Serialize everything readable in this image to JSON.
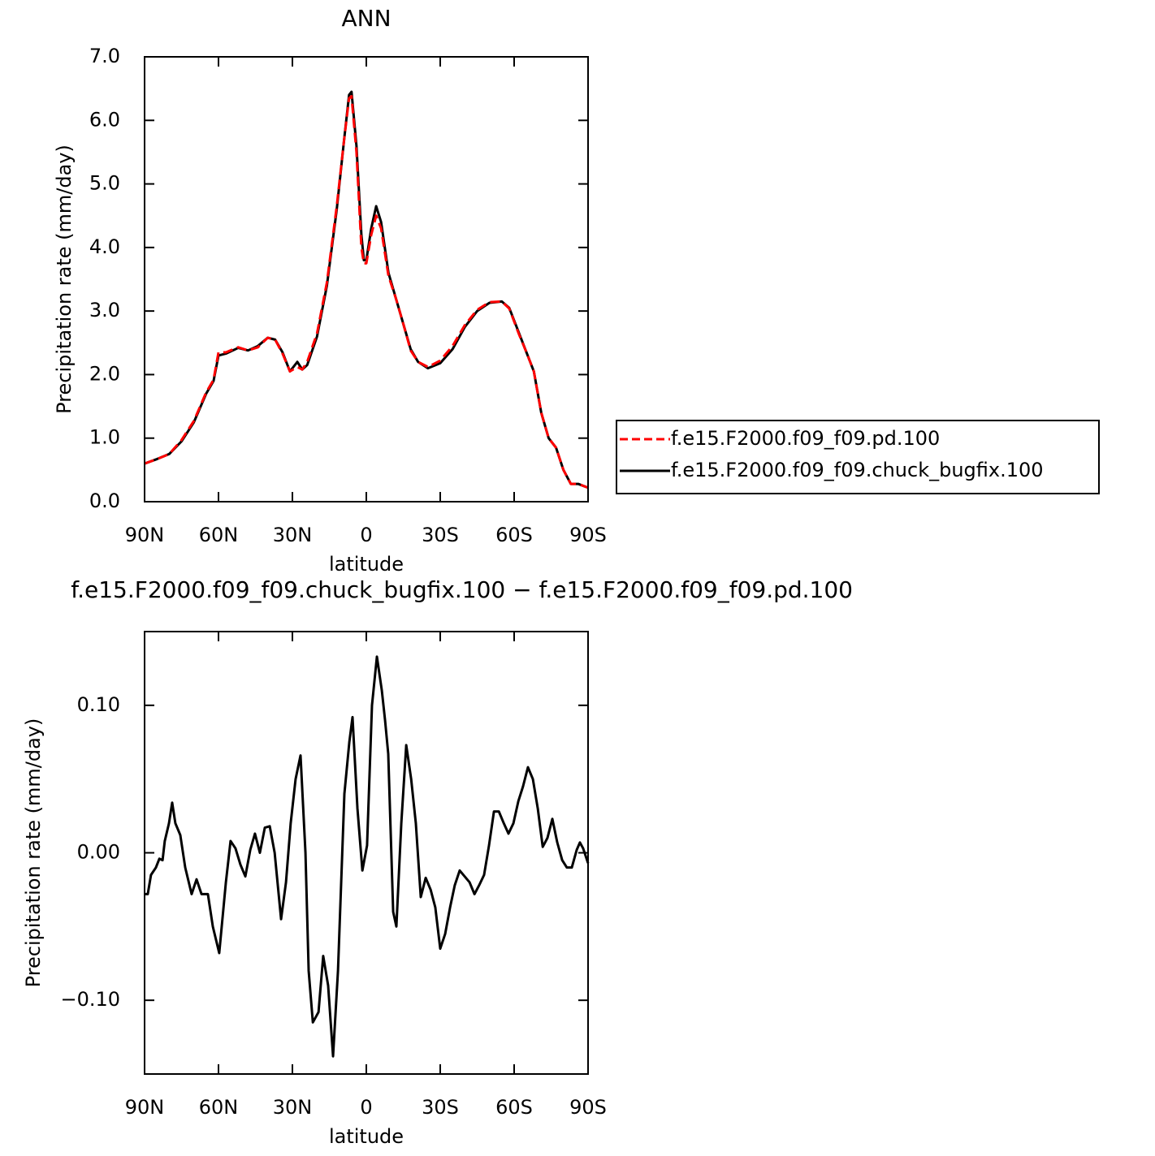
{
  "chart_data": [
    {
      "type": "line",
      "title": "ANN",
      "xlabel": "latitude",
      "ylabel": "Precipitation rate (mm/day)",
      "x": [
        90,
        85,
        80,
        75,
        70,
        65,
        62,
        60,
        57,
        52,
        48,
        44,
        40,
        37,
        34,
        31,
        28,
        26,
        24,
        20,
        16,
        12,
        9,
        7,
        6,
        4,
        2,
        1,
        0,
        -2,
        -4,
        -6,
        -9,
        -12,
        -15,
        -18,
        -21,
        -25,
        -30,
        -35,
        -40,
        -45,
        -50,
        -55,
        -58,
        -62,
        -65,
        -68,
        -71,
        -74,
        -77,
        -80,
        -83,
        -86,
        -88,
        -90
      ],
      "series": [
        {
          "name": "f.e15.F2000.f09_f09.pd.100",
          "color": "#ff0000",
          "linestyle": "dashed",
          "values": [
            0.6,
            0.67,
            0.75,
            0.97,
            1.27,
            1.72,
            1.92,
            2.35,
            2.35,
            2.43,
            2.38,
            2.43,
            2.58,
            2.55,
            2.33,
            2.05,
            2.12,
            2.08,
            2.2,
            2.65,
            3.45,
            4.65,
            5.7,
            6.35,
            6.38,
            5.5,
            4.0,
            3.75,
            3.75,
            4.2,
            4.5,
            4.3,
            3.55,
            3.2,
            2.8,
            2.38,
            2.2,
            2.12,
            2.22,
            2.45,
            2.78,
            3.02,
            3.14,
            3.15,
            3.04,
            2.63,
            2.35,
            2.05,
            1.4,
            1.0,
            0.85,
            0.5,
            0.28,
            0.28,
            0.25,
            0.22
          ]
        },
        {
          "name": "f.e15.F2000.f09_f09.chuck_bugfix.100",
          "color": "#000000",
          "linestyle": "solid",
          "values": [
            0.6,
            0.67,
            0.75,
            0.95,
            1.25,
            1.7,
            1.9,
            2.3,
            2.33,
            2.42,
            2.38,
            2.45,
            2.58,
            2.55,
            2.35,
            2.05,
            2.2,
            2.08,
            2.15,
            2.6,
            3.4,
            4.6,
            5.7,
            6.4,
            6.45,
            5.6,
            4.2,
            3.8,
            3.8,
            4.3,
            4.65,
            4.4,
            3.6,
            3.2,
            2.8,
            2.4,
            2.2,
            2.1,
            2.18,
            2.4,
            2.75,
            3.0,
            3.13,
            3.15,
            3.05,
            2.65,
            2.35,
            2.05,
            1.4,
            1.0,
            0.85,
            0.5,
            0.28,
            0.28,
            0.25,
            0.22
          ]
        }
      ],
      "xlim": [
        90,
        -90
      ],
      "xticks": [
        {
          "value": 90,
          "label": "90N"
        },
        {
          "value": 60,
          "label": "60N"
        },
        {
          "value": 30,
          "label": "30N"
        },
        0,
        {
          "value": -30,
          "label": "30S"
        },
        {
          "value": -60,
          "label": "60S"
        },
        {
          "value": -90,
          "label": "90S"
        }
      ],
      "ylim": [
        0,
        7
      ],
      "yticks": [
        {
          "value": 0,
          "label": "0.0"
        },
        {
          "value": 1,
          "label": "1.0"
        },
        {
          "value": 2,
          "label": "2.0"
        },
        {
          "value": 3,
          "label": "3.0"
        },
        {
          "value": 4,
          "label": "4.0"
        },
        {
          "value": 5,
          "label": "5.0"
        },
        {
          "value": 6,
          "label": "6.0"
        },
        {
          "value": 7,
          "label": "7.0"
        }
      ],
      "legend": "right"
    },
    {
      "type": "line",
      "title": "f.e15.F2000.f09_f09.chuck_bugfix.100 − f.e15.F2000.f09_f09.pd.100",
      "xlabel": "latitude",
      "ylabel": "Precipitation rate (mm/day)",
      "x": [
        90,
        88.7,
        87.4,
        85.4,
        84,
        82.7,
        81.8,
        80.1,
        78.8,
        77.5,
        75.5,
        73.5,
        70.9,
        68.9,
        66.9,
        64.3,
        62.3,
        59.7,
        57,
        55.1,
        53.1,
        51.1,
        49.1,
        47.1,
        45.2,
        43.2,
        41.2,
        39.2,
        37.2,
        34.6,
        32.6,
        30.7,
        28.7,
        26.7,
        24.7,
        23.4,
        21.7,
        19.4,
        17.5,
        15.5,
        13.5,
        11.5,
        8.9,
        6.9,
        5.6,
        3.6,
        1.6,
        -0.3,
        -2.3,
        -4.3,
        -6.3,
        -7.6,
        -8.9,
        -10.9,
        -12.2,
        -14.2,
        -16.2,
        -18.2,
        -20.1,
        -22.1,
        -24.1,
        -26.1,
        -28,
        -30,
        -32,
        -34,
        -35.9,
        -37.9,
        -39.9,
        -41.9,
        -43.9,
        -45.8,
        -47.8,
        -49.8,
        -51.8,
        -53.8,
        -55.8,
        -57.7,
        -59.7,
        -61.7,
        -63.6,
        -65.6,
        -67.6,
        -69.6,
        -71.6,
        -73.5,
        -75.5,
        -77.5,
        -79.5,
        -81.4,
        -83.4,
        -85.4,
        -86.7,
        -88,
        -90
      ],
      "series": [
        {
          "color": "#000000",
          "values": [
            -0.028,
            -0.028,
            -0.015,
            -0.01,
            -0.004,
            -0.005,
            0.008,
            0.02,
            0.034,
            0.02,
            0.012,
            -0.01,
            -0.028,
            -0.018,
            -0.028,
            -0.028,
            -0.05,
            -0.068,
            -0.02,
            0.008,
            0.003,
            -0.008,
            -0.016,
            0.002,
            0.013,
            0.0,
            0.017,
            0.018,
            0.0,
            -0.045,
            -0.02,
            0.02,
            0.05,
            0.066,
            0.0,
            -0.08,
            -0.115,
            -0.108,
            -0.07,
            -0.09,
            -0.138,
            -0.08,
            0.04,
            0.075,
            0.092,
            0.03,
            -0.012,
            0.005,
            0.1,
            0.133,
            0.11,
            0.09,
            0.067,
            -0.04,
            -0.05,
            0.02,
            0.073,
            0.05,
            0.02,
            -0.03,
            -0.017,
            -0.025,
            -0.037,
            -0.065,
            -0.055,
            -0.037,
            -0.022,
            -0.012,
            -0.016,
            -0.02,
            -0.028,
            -0.022,
            -0.015,
            0.005,
            0.028,
            0.028,
            0.02,
            0.013,
            0.02,
            0.035,
            0.045,
            0.058,
            0.05,
            0.03,
            0.004,
            0.01,
            0.023,
            0.007,
            -0.005,
            -0.01,
            -0.01,
            0.002,
            0.007,
            0.003,
            -0.007
          ]
        }
      ],
      "xlim": [
        90,
        -90
      ],
      "xticks": [
        {
          "value": 90,
          "label": "90N"
        },
        {
          "value": 60,
          "label": "60N"
        },
        {
          "value": 30,
          "label": "30N"
        },
        0,
        {
          "value": -30,
          "label": "30S"
        },
        {
          "value": -60,
          "label": "60S"
        },
        {
          "value": -90,
          "label": "90S"
        }
      ],
      "ylim": [
        -0.15,
        0.15
      ],
      "yticks": [
        {
          "value": -0.1,
          "label": "−0.10"
        },
        {
          "value": 0,
          "label": "0.00"
        },
        {
          "value": 0.1,
          "label": "0.10"
        }
      ]
    }
  ]
}
